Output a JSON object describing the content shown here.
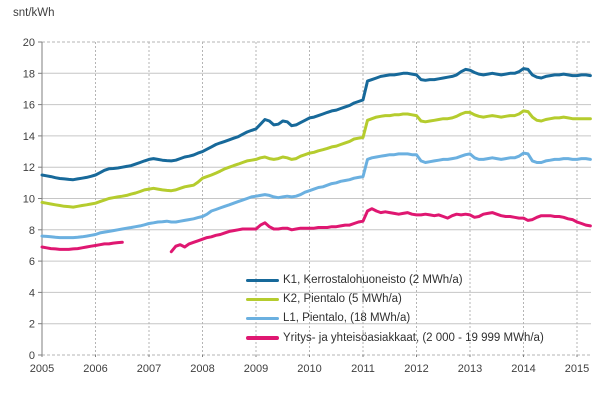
{
  "title": "snt/kWh",
  "colors": {
    "k1": "#17699a",
    "k2": "#b5cc2e",
    "l1": "#6bb0e0",
    "yritys": "#df1771",
    "grid_solid": "#c6c6c6",
    "grid_dashed": "#b5b5b5",
    "axis": "#7f7f7f",
    "text": "#3f3f3f"
  },
  "legend": [
    {
      "key": "k1",
      "label": "K1, Kerrostalohuoneisto (2 MWh/a)"
    },
    {
      "key": "k2",
      "label": "K2, Pientalo  (5 MWh/a)"
    },
    {
      "key": "l1",
      "label": "L1, Pientalo, (18 MWh/a)"
    },
    {
      "key": "yritys",
      "label": "Yritys- ja yhteisöasiakkaat, (2 000 - 19 999 MWh/a)"
    }
  ],
  "chart_data": {
    "type": "line",
    "title": "snt/kWh",
    "xlabel": "",
    "ylabel": "snt/kWh",
    "ylim": [
      0,
      20
    ],
    "y_tick_step": 2,
    "y_tick_labels": [
      "0",
      "2",
      "4",
      "6",
      "8",
      "10",
      "12",
      "14",
      "16",
      "18",
      "20"
    ],
    "x_tick_labels": [
      "2005",
      "2006",
      "2007",
      "2008",
      "2009",
      "2010",
      "2011",
      "2012",
      "2013",
      "2014",
      "2015"
    ],
    "x_start_year": 2005,
    "x_interval_months": 1,
    "grid": true,
    "legend_position": "inside-bottom",
    "series": [
      {
        "name": "K1, Kerrostalohuoneisto (2 MWh/a)",
        "key": "k1",
        "values": [
          11.5,
          11.45,
          11.4,
          11.33,
          11.28,
          11.25,
          11.22,
          11.2,
          11.25,
          11.3,
          11.35,
          11.42,
          11.5,
          11.65,
          11.8,
          11.9,
          11.92,
          11.95,
          12.0,
          12.05,
          12.1,
          12.2,
          12.3,
          12.4,
          12.5,
          12.55,
          12.5,
          12.45,
          12.42,
          12.4,
          12.45,
          12.55,
          12.65,
          12.7,
          12.78,
          12.9,
          13.0,
          13.15,
          13.3,
          13.45,
          13.55,
          13.65,
          13.75,
          13.85,
          13.95,
          14.1,
          14.25,
          14.35,
          14.45,
          14.75,
          15.05,
          14.95,
          14.7,
          14.75,
          14.95,
          14.9,
          14.65,
          14.7,
          14.85,
          15.0,
          15.15,
          15.2,
          15.3,
          15.4,
          15.5,
          15.6,
          15.65,
          15.75,
          15.85,
          15.95,
          16.1,
          16.2,
          16.3,
          17.5,
          17.6,
          17.7,
          17.8,
          17.85,
          17.9,
          17.9,
          17.95,
          18.0,
          18.0,
          17.95,
          17.9,
          17.6,
          17.55,
          17.6,
          17.6,
          17.65,
          17.7,
          17.75,
          17.8,
          17.9,
          18.1,
          18.25,
          18.2,
          18.05,
          17.95,
          17.9,
          17.95,
          18.0,
          17.95,
          17.9,
          17.95,
          18.0,
          18.0,
          18.1,
          18.3,
          18.25,
          17.9,
          17.75,
          17.7,
          17.8,
          17.85,
          17.9,
          17.9,
          17.95,
          17.9,
          17.85,
          17.85,
          17.9,
          17.9,
          17.85
        ]
      },
      {
        "name": "K2, Pientalo  (5 MWh/a)",
        "key": "k2",
        "values": [
          9.75,
          9.7,
          9.65,
          9.6,
          9.55,
          9.5,
          9.48,
          9.45,
          9.5,
          9.55,
          9.6,
          9.65,
          9.7,
          9.8,
          9.9,
          10.0,
          10.05,
          10.1,
          10.15,
          10.2,
          10.28,
          10.35,
          10.45,
          10.55,
          10.6,
          10.65,
          10.6,
          10.55,
          10.52,
          10.5,
          10.55,
          10.65,
          10.75,
          10.8,
          10.85,
          11.05,
          11.3,
          11.4,
          11.5,
          11.62,
          11.75,
          11.9,
          12.0,
          12.1,
          12.2,
          12.3,
          12.4,
          12.45,
          12.5,
          12.6,
          12.65,
          12.55,
          12.5,
          12.55,
          12.65,
          12.6,
          12.5,
          12.55,
          12.7,
          12.8,
          12.9,
          12.95,
          13.05,
          13.12,
          13.2,
          13.3,
          13.35,
          13.45,
          13.55,
          13.65,
          13.8,
          13.85,
          13.9,
          15.0,
          15.1,
          15.2,
          15.25,
          15.3,
          15.3,
          15.35,
          15.35,
          15.4,
          15.4,
          15.35,
          15.3,
          14.95,
          14.9,
          14.95,
          15.0,
          15.05,
          15.1,
          15.1,
          15.15,
          15.25,
          15.4,
          15.5,
          15.5,
          15.35,
          15.25,
          15.2,
          15.25,
          15.3,
          15.25,
          15.2,
          15.25,
          15.3,
          15.3,
          15.4,
          15.6,
          15.55,
          15.2,
          15.0,
          14.95,
          15.05,
          15.1,
          15.15,
          15.15,
          15.2,
          15.15,
          15.1,
          15.1,
          15.1,
          15.1,
          15.1
        ]
      },
      {
        "name": "L1, Pientalo, (18 MWh/a)",
        "key": "l1",
        "values": [
          7.6,
          7.58,
          7.55,
          7.52,
          7.5,
          7.5,
          7.5,
          7.5,
          7.52,
          7.55,
          7.6,
          7.65,
          7.7,
          7.8,
          7.85,
          7.9,
          7.95,
          8.0,
          8.05,
          8.1,
          8.15,
          8.2,
          8.25,
          8.32,
          8.4,
          8.45,
          8.5,
          8.52,
          8.55,
          8.5,
          8.5,
          8.55,
          8.6,
          8.65,
          8.7,
          8.78,
          8.85,
          9.0,
          9.2,
          9.3,
          9.4,
          9.5,
          9.6,
          9.7,
          9.8,
          9.9,
          10.0,
          10.1,
          10.15,
          10.2,
          10.25,
          10.2,
          10.1,
          10.05,
          10.1,
          10.15,
          10.1,
          10.15,
          10.25,
          10.4,
          10.5,
          10.6,
          10.7,
          10.75,
          10.85,
          10.95,
          11.0,
          11.1,
          11.15,
          11.2,
          11.3,
          11.35,
          11.4,
          12.5,
          12.6,
          12.65,
          12.7,
          12.75,
          12.8,
          12.8,
          12.85,
          12.85,
          12.85,
          12.8,
          12.8,
          12.4,
          12.3,
          12.35,
          12.4,
          12.45,
          12.5,
          12.5,
          12.55,
          12.6,
          12.7,
          12.8,
          12.85,
          12.6,
          12.5,
          12.5,
          12.55,
          12.6,
          12.55,
          12.5,
          12.55,
          12.6,
          12.6,
          12.7,
          12.9,
          12.85,
          12.4,
          12.3,
          12.3,
          12.4,
          12.45,
          12.5,
          12.5,
          12.55,
          12.55,
          12.5,
          12.5,
          12.55,
          12.55,
          12.5
        ]
      },
      {
        "name": "Yritys- ja yhteisöasiakkaat, (2 000 - 19 999 MWh/a)",
        "key": "yritys",
        "values": [
          6.9,
          6.85,
          6.8,
          6.78,
          6.75,
          6.75,
          6.75,
          6.78,
          6.8,
          6.85,
          6.9,
          6.95,
          7.0,
          7.05,
          7.1,
          7.1,
          7.15,
          7.18,
          7.2,
          null,
          null,
          null,
          null,
          null,
          null,
          null,
          null,
          null,
          null,
          6.6,
          6.95,
          7.05,
          6.9,
          7.1,
          7.2,
          7.3,
          7.4,
          7.5,
          7.55,
          7.65,
          7.7,
          7.8,
          7.9,
          7.95,
          8.0,
          8.05,
          8.05,
          8.05,
          8.05,
          8.3,
          8.45,
          8.2,
          8.05,
          8.05,
          8.1,
          8.1,
          8.0,
          8.05,
          8.1,
          8.1,
          8.1,
          8.1,
          8.15,
          8.15,
          8.15,
          8.2,
          8.2,
          8.25,
          8.3,
          8.3,
          8.4,
          8.5,
          8.55,
          9.2,
          9.35,
          9.2,
          9.1,
          9.15,
          9.1,
          9.05,
          9.0,
          9.05,
          9.1,
          9.0,
          8.95,
          8.95,
          9.0,
          8.95,
          8.9,
          8.95,
          8.85,
          8.75,
          8.9,
          9.0,
          8.95,
          9.0,
          8.95,
          8.8,
          8.85,
          9.0,
          9.05,
          9.1,
          9.0,
          8.9,
          8.85,
          8.85,
          8.8,
          8.75,
          8.75,
          8.6,
          8.65,
          8.8,
          8.9,
          8.9,
          8.9,
          8.85,
          8.85,
          8.8,
          8.7,
          8.65,
          8.5,
          8.4,
          8.3,
          8.25
        ]
      }
    ]
  }
}
